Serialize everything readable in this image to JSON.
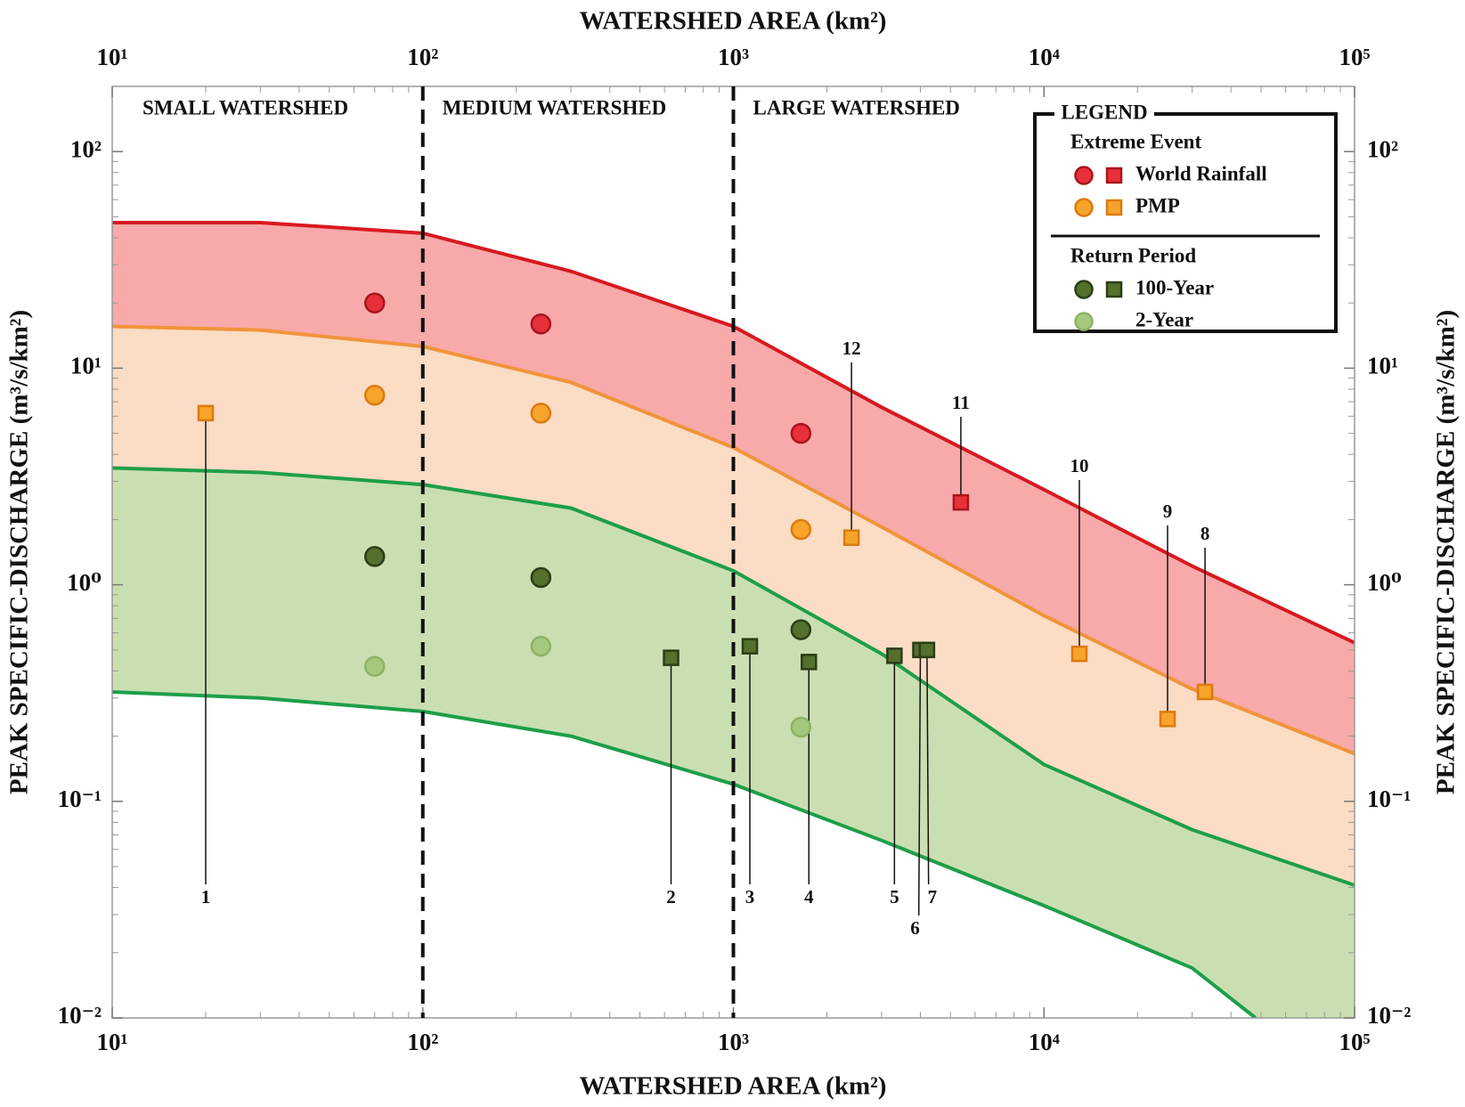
{
  "chart_data": {
    "type": "scatter",
    "xlabel": "WATERSHED AREA (km²)",
    "ylabel": "PEAK SPECIFIC-DISCHARGE (m³/s/km²)",
    "xscale": "log",
    "yscale": "log",
    "xlim": [
      10,
      100000
    ],
    "ylim": [
      0.01,
      200
    ],
    "xticks": [
      {
        "value": 10,
        "label": "10¹"
      },
      {
        "value": 100,
        "label": "10²"
      },
      {
        "value": 1000,
        "label": "10³"
      },
      {
        "value": 10000,
        "label": "10⁴"
      },
      {
        "value": 100000,
        "label": "10⁵"
      }
    ],
    "yticks": [
      {
        "value": 0.01,
        "label": "10⁻²"
      },
      {
        "value": 0.1,
        "label": "10⁻¹"
      },
      {
        "value": 1,
        "label": "10⁰"
      },
      {
        "value": 10,
        "label": "10¹"
      },
      {
        "value": 100,
        "label": "10²"
      }
    ],
    "minor_ticks": true,
    "regions": [
      {
        "label": "SMALL WATERSHED",
        "start": 10
      },
      {
        "label": "MEDIUM WATERSHED",
        "start": 100
      },
      {
        "label": "LARGE WATERSHED",
        "start": 1000
      }
    ],
    "curves": [
      {
        "color": "#d71920",
        "fill": "#f8a9a9",
        "x": [
          10,
          30,
          100,
          300,
          1000,
          3000,
          10000,
          30000,
          100000
        ],
        "values": [
          47,
          47,
          42,
          28,
          15.6,
          6.6,
          2.75,
          1.22,
          0.54
        ]
      },
      {
        "color": "#f0943a",
        "fill": "#fbdcc4",
        "x": [
          10,
          30,
          100,
          300,
          1000,
          3000,
          10000,
          30000,
          100000
        ],
        "values": [
          15.6,
          15,
          12.6,
          8.6,
          4.3,
          1.85,
          0.72,
          0.33,
          0.166
        ]
      },
      {
        "color": "#1e9e48",
        "fill": "#cadfb1",
        "x": [
          10,
          30,
          100,
          300,
          1000,
          3000,
          10000,
          30000,
          100000
        ],
        "values": [
          3.46,
          3.3,
          2.9,
          2.26,
          1.16,
          0.48,
          0.148,
          0.074,
          0.041
        ]
      },
      {
        "color": "#1e9e48",
        "x": [
          10,
          30,
          100,
          300,
          1000,
          3000,
          10000,
          30000,
          48000
        ],
        "values": [
          0.32,
          0.3,
          0.26,
          0.2,
          0.12,
          0.066,
          0.033,
          0.017,
          0.01
        ]
      }
    ],
    "legend": {
      "title": "LEGEND",
      "groups": [
        {
          "title": "Extreme Event",
          "series": [
            {
              "name": "World Rainfall",
              "color": "#e8303a",
              "edgecolor": "#a8141c",
              "circles": {
                "x": [
                  70,
                  240,
                  1650
                ],
                "values": [
                  20,
                  16,
                  5
                ]
              },
              "squares": {
                "x": [
                  5400
                ],
                "values": [
                  2.4
                ],
                "labels": [
                  "11"
                ]
              }
            },
            {
              "name": "PMP",
              "color": "#f6a42a",
              "edgecolor": "#dc7a10",
              "circles": {
                "x": [
                  70,
                  240,
                  1650
                ],
                "values": [
                  7.5,
                  6.2,
                  1.8
                ]
              },
              "squares": {
                "x": [
                  20,
                  2400,
                  13000,
                  25000,
                  33000
                ],
                "values": [
                  6.2,
                  1.65,
                  0.48,
                  0.24,
                  0.32
                ],
                "labels": [
                  "1",
                  "12",
                  "10",
                  "9",
                  "8"
                ]
              }
            }
          ]
        },
        {
          "title": "Return Period",
          "series": [
            {
              "name": "100-Year",
              "color": "#53702c",
              "edgecolor": "#2c3d16",
              "circles": {
                "x": [
                  70,
                  240,
                  1650
                ],
                "values": [
                  1.35,
                  1.08,
                  0.62
                ]
              },
              "squares": {
                "x": [
                  630,
                  1130,
                  1750,
                  3300,
                  4000,
                  4200
                ],
                "values": [
                  0.46,
                  0.52,
                  0.44,
                  0.47,
                  0.5,
                  0.5
                ],
                "labels": [
                  "2",
                  "3",
                  "4",
                  "5",
                  "6",
                  "7"
                ]
              }
            },
            {
              "name": "2-Year",
              "color": "#a6c87e",
              "edgecolor": "#8db266",
              "circles": {
                "x": [
                  70,
                  240,
                  1650
                ],
                "values": [
                  0.42,
                  0.52,
                  0.22
                ]
              }
            }
          ]
        }
      ]
    }
  }
}
